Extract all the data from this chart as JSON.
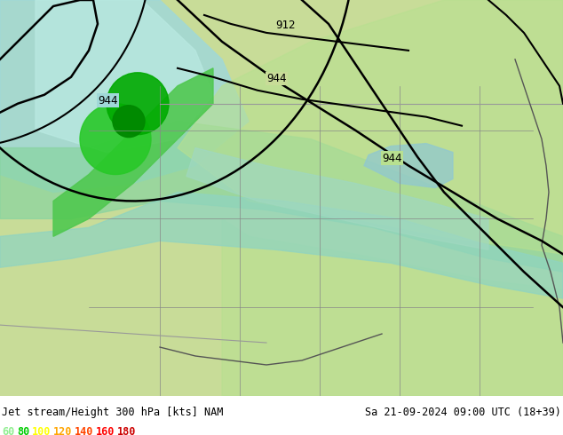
{
  "title_left": "Jet stream/Height 300 hPa [kts] NAM",
  "title_right": "Sa 21-09-2024 09:00 UTC (18+39)",
  "legend_values": [
    60,
    80,
    100,
    120,
    140,
    160,
    180
  ],
  "legend_colors": [
    "#90ee90",
    "#00cc00",
    "#ffff00",
    "#ffa500",
    "#ff4500",
    "#ff0000",
    "#cc0000"
  ],
  "contour_color": "#000000",
  "contour_labels": [
    "912",
    "944",
    "944",
    "944"
  ],
  "bg_color": "#c8e6a0",
  "map_bg": "#d4e8a0",
  "jet_colors": [
    [
      60,
      "#90ee90"
    ],
    [
      80,
      "#32cd32"
    ],
    [
      100,
      "#ffff00"
    ],
    [
      120,
      "#ffa500"
    ],
    [
      140,
      "#ff6600"
    ],
    [
      160,
      "#ff2200"
    ],
    [
      180,
      "#cc0000"
    ]
  ],
  "figsize": [
    6.34,
    4.9
  ],
  "dpi": 100
}
